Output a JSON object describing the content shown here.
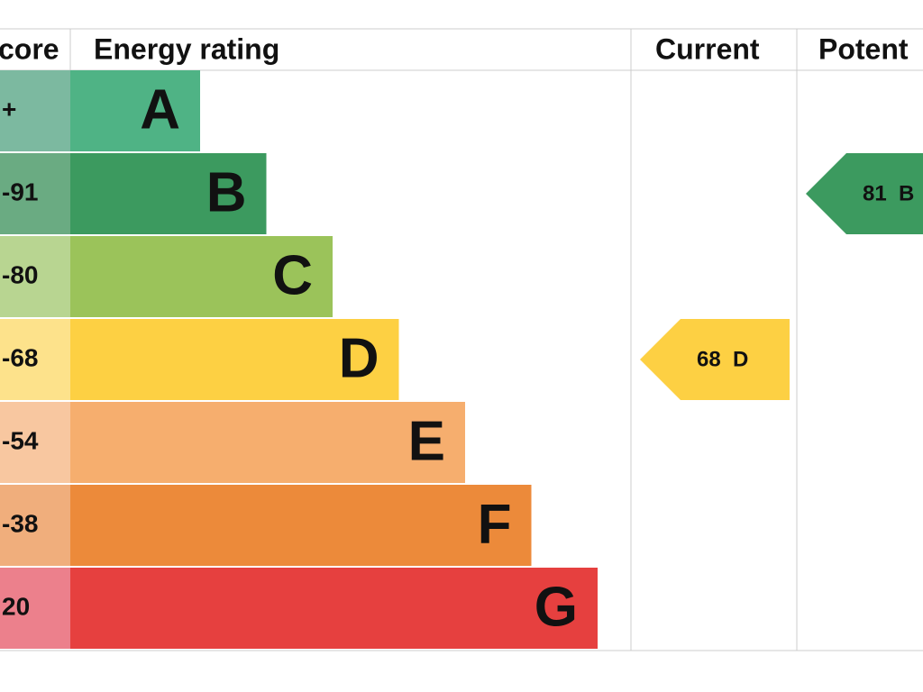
{
  "chart_data": {
    "type": "epc",
    "headers": [
      "core",
      "Energy rating",
      "Current",
      "Potent"
    ],
    "bands": [
      {
        "score": "+",
        "letter": "A",
        "color": "#4fb385",
        "score_color": "#7cb9a0"
      },
      {
        "score": "-91",
        "letter": "B",
        "color": "#3c9a5f",
        "score_color": "#6aab82"
      },
      {
        "score": "-80",
        "letter": "C",
        "color": "#9bc35a",
        "score_color": "#b8d591"
      },
      {
        "score": "-68",
        "letter": "D",
        "color": "#fdd043",
        "score_color": "#fde28b"
      },
      {
        "score": "-54",
        "letter": "E",
        "color": "#f6ae6e",
        "score_color": "#f8c7a0"
      },
      {
        "score": "-38",
        "letter": "F",
        "color": "#ec8a3a",
        "score_color": "#f0ae7c"
      },
      {
        "score": "20",
        "letter": "G",
        "color": "#e6403f",
        "score_color": "#ec808c"
      }
    ],
    "current": {
      "values": [
        68
      ],
      "value_labels": [
        "68  D"
      ],
      "color": "#fdd043"
    },
    "potential": {
      "values": [
        81
      ],
      "value_labels": [
        "81  B"
      ],
      "color": "#3c9a5f"
    }
  }
}
